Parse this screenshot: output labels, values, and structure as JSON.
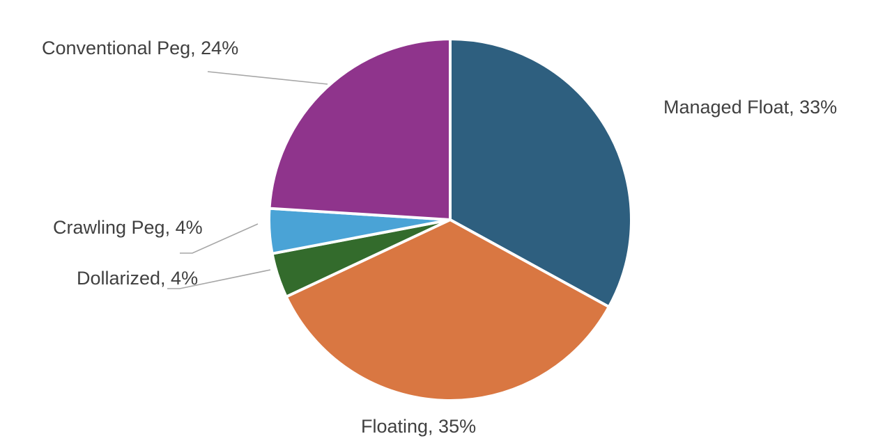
{
  "chart_data": {
    "type": "pie",
    "title": "",
    "legend": "none",
    "slices": [
      {
        "label": "Managed Float",
        "value": 33,
        "data_label": "Managed Float, 33%",
        "color": "#2e5f7f"
      },
      {
        "label": "Floating",
        "value": 35,
        "data_label": "Floating, 35%",
        "color": "#d97742"
      },
      {
        "label": "Dollarized",
        "value": 4,
        "data_label": "Dollarized, 4%",
        "color": "#336b2c"
      },
      {
        "label": "Crawling Peg",
        "value": 4,
        "data_label": "Crawling Peg, 4%",
        "color": "#4aa3d6"
      },
      {
        "label": "Conventional Peg",
        "value": 24,
        "data_label": "Conventional Peg, 24%",
        "color": "#8f348c"
      }
    ]
  }
}
